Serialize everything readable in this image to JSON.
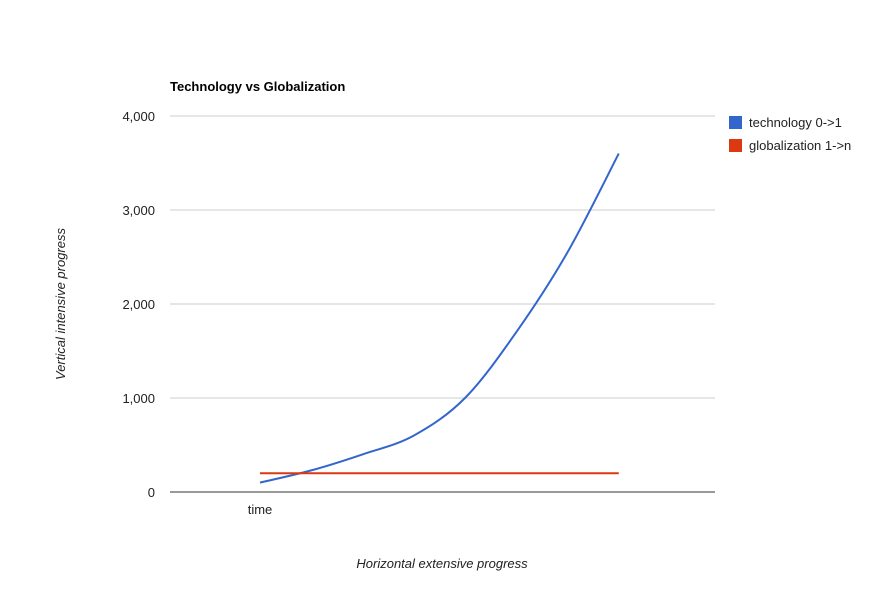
{
  "chart_data": {
    "type": "line",
    "title": "Technology vs Globalization",
    "xlabel": "Horizontal extensive progress",
    "ylabel": "Vertical intensive progress",
    "x_tick_labels": [
      "time"
    ],
    "y_ticks": [
      0,
      1000,
      2000,
      3000,
      4000
    ],
    "y_tick_labels": [
      "0",
      "1,000",
      "2,000",
      "3,000",
      "4,000"
    ],
    "ylim": [
      0,
      4000
    ],
    "grid": true,
    "legend_position": "right",
    "x": [
      0,
      1,
      2,
      3,
      4,
      5,
      6,
      7,
      8
    ],
    "series": [
      {
        "name": "technology 0->1",
        "color": "#3366cc",
        "values": [
          100,
          230,
          400,
          600,
          1000,
          1700,
          2550,
          3600,
          null
        ]
      },
      {
        "name": "globalization 1->n",
        "color": "#dc3912",
        "values": [
          200,
          200,
          200,
          200,
          200,
          200,
          200,
          200,
          null
        ]
      }
    ]
  }
}
